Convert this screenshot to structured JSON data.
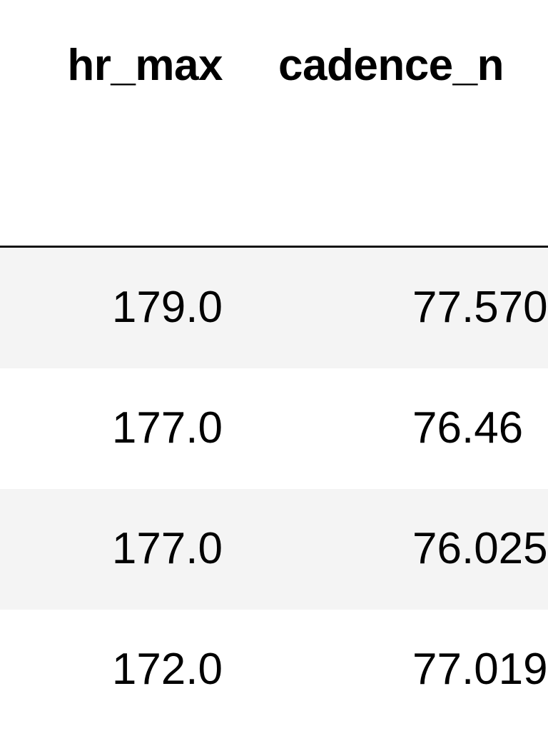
{
  "table": {
    "columns": [
      "hr_max",
      "cadence_n"
    ],
    "rows": [
      {
        "hr_max": "179.0",
        "cadence": "77.570"
      },
      {
        "hr_max": "177.0",
        "cadence": "76.46"
      },
      {
        "hr_max": "177.0",
        "cadence": "76.025"
      },
      {
        "hr_max": "172.0",
        "cadence": "77.019"
      }
    ]
  },
  "colors": {
    "stripe": "#f4f4f4",
    "header_border": "#111111"
  }
}
